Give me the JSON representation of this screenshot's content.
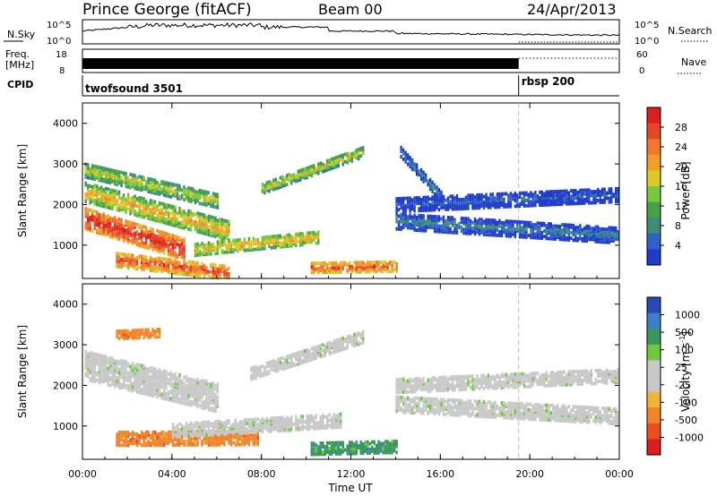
{
  "header": {
    "station": "Prince George (fitACF)",
    "beam": "Beam 00",
    "date": "24/Apr/2013"
  },
  "nsky_panel": {
    "left_label": "N.Sky",
    "left_ticks": [
      "10^5",
      "10^0"
    ],
    "right_ticks": [
      "10^5",
      "10^0"
    ],
    "right_label": "N.Search"
  },
  "freq_panel": {
    "label_line1": "Freq.",
    "label_line2": "[MHz]",
    "left_ticks": [
      "18",
      "8"
    ],
    "right_ticks": [
      "60",
      "0"
    ],
    "right_label": "Nave"
  },
  "cpid_panel": {
    "label": "CPID",
    "programs": [
      {
        "name": "twofsound 3501",
        "start_hour": 0
      },
      {
        "name": "rbsp 200",
        "start_hour": 19.5
      }
    ]
  },
  "colors": {
    "power": [
      "#1e3cc8",
      "#2e62c8",
      "#3c8c78",
      "#46a046",
      "#78c83c",
      "#dcc82a",
      "#f0a02a",
      "#f07828",
      "#e64628",
      "#dc1e1e"
    ],
    "velocity": [
      "#2848b4",
      "#3a7ec8",
      "#3a965a",
      "#6ec83a",
      "#c8c8c8",
      "#c8c8c8",
      "#f0b43a",
      "#f08228",
      "#e6501e",
      "#dc1e1e"
    ]
  },
  "chart_data": [
    {
      "type": "heatmap",
      "name": "power",
      "xlabel": "",
      "ylabel": "Slant Range [km]",
      "xlim": [
        0,
        24
      ],
      "ylim": [
        180,
        4500
      ],
      "yticks": [
        1000,
        2000,
        3000,
        4000
      ],
      "colorbar": {
        "label": "Power [dB]",
        "range": [
          0,
          32
        ],
        "ticks": [
          "4",
          "8",
          "12",
          "16",
          "20",
          "24",
          "28"
        ]
      },
      "bands": [
        {
          "start_hour": 0.1,
          "end_hour": 4.5,
          "range_start": 1650,
          "range_end": 900,
          "width": 500,
          "level": 9
        },
        {
          "start_hour": 0.1,
          "end_hour": 6.5,
          "range_start": 2300,
          "range_end": 1350,
          "width": 450,
          "level": 6
        },
        {
          "start_hour": 0.1,
          "end_hour": 6.0,
          "range_start": 2850,
          "range_end": 2100,
          "width": 350,
          "level": 5
        },
        {
          "start_hour": 1.5,
          "end_hour": 6.5,
          "range_start": 650,
          "range_end": 330,
          "width": 350,
          "level": 8
        },
        {
          "start_hour": 5.0,
          "end_hour": 10.5,
          "range_start": 900,
          "range_end": 1200,
          "width": 300,
          "level": 6
        },
        {
          "start_hour": 8.0,
          "end_hour": 12.5,
          "range_start": 2400,
          "range_end": 3300,
          "width": 260,
          "level": 5
        },
        {
          "start_hour": 10.2,
          "end_hour": 14.0,
          "range_start": 450,
          "range_end": 480,
          "width": 250,
          "level": 8
        },
        {
          "start_hour": 14.0,
          "end_hour": 24.0,
          "range_start": 1600,
          "range_end": 1250,
          "width": 400,
          "level": 2
        },
        {
          "start_hour": 14.0,
          "end_hour": 24.0,
          "range_start": 2000,
          "range_end": 2250,
          "width": 350,
          "level": 1
        },
        {
          "start_hour": 14.2,
          "end_hour": 16.0,
          "range_start": 3300,
          "range_end": 2200,
          "width": 250,
          "level": 2
        }
      ]
    },
    {
      "type": "heatmap",
      "name": "velocity",
      "xlabel": "Time UT",
      "ylabel": "Slant Range [km]",
      "xlim": [
        0,
        24
      ],
      "ylim": [
        180,
        4500
      ],
      "xticks": [
        "00:00",
        "04:00",
        "08:00",
        "12:00",
        "16:00",
        "20:00",
        "00:00"
      ],
      "yticks": [
        1000,
        2000,
        3000,
        4000
      ],
      "colorbar": {
        "label": "Velocity [m s^-1]",
        "ticks": [
          "1000",
          "500",
          "100",
          "25",
          "-25",
          "-100",
          "-500",
          "-1000"
        ]
      },
      "bands": [
        {
          "start_hour": 1.5,
          "end_hour": 7.8,
          "range_start": 700,
          "range_end": 720,
          "width": 350,
          "level": 7
        },
        {
          "start_hour": 0.1,
          "end_hour": 6.0,
          "range_start": 2500,
          "range_end": 1700,
          "width": 700,
          "level": 4
        },
        {
          "start_hour": 4.0,
          "end_hour": 11.5,
          "range_start": 900,
          "range_end": 1150,
          "width": 350,
          "level": 4
        },
        {
          "start_hour": 7.5,
          "end_hour": 12.5,
          "range_start": 2300,
          "range_end": 3200,
          "width": 300,
          "level": 4
        },
        {
          "start_hour": 10.2,
          "end_hour": 14.0,
          "range_start": 450,
          "range_end": 500,
          "width": 300,
          "level": 2
        },
        {
          "start_hour": 14.0,
          "end_hour": 24.0,
          "range_start": 1550,
          "range_end": 1250,
          "width": 400,
          "level": 4
        },
        {
          "start_hour": 14.0,
          "end_hour": 24.0,
          "range_start": 2000,
          "range_end": 2250,
          "width": 350,
          "level": 4
        },
        {
          "start_hour": 1.5,
          "end_hour": 3.5,
          "range_start": 3250,
          "range_end": 3300,
          "width": 200,
          "level": 7
        }
      ]
    }
  ]
}
